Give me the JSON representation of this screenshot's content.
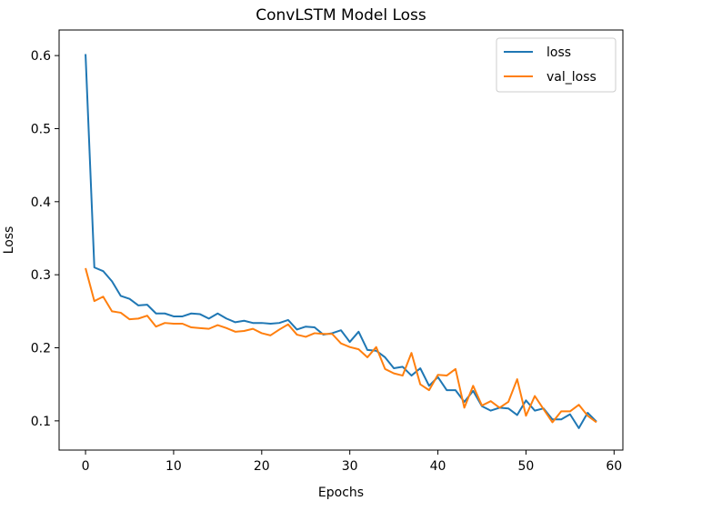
{
  "chart_data": {
    "type": "line",
    "title": "ConvLSTM Model Loss",
    "xlabel": "Epochs",
    "ylabel": "Loss",
    "xlim": [
      -3,
      61
    ],
    "ylim": [
      0.06,
      0.635
    ],
    "xticks": [
      0,
      10,
      20,
      30,
      40,
      50,
      60
    ],
    "xtick_labels": [
      "0",
      "10",
      "20",
      "30",
      "40",
      "50",
      "60"
    ],
    "yticks": [
      0.1,
      0.2,
      0.3,
      0.4,
      0.5,
      0.6
    ],
    "ytick_labels": [
      "0.1",
      "0.2",
      "0.3",
      "0.4",
      "0.5",
      "0.6"
    ],
    "grid": false,
    "legend_position": "top-right",
    "x": [
      0,
      1,
      2,
      3,
      4,
      5,
      6,
      7,
      8,
      9,
      10,
      11,
      12,
      13,
      14,
      15,
      16,
      17,
      18,
      19,
      20,
      21,
      22,
      23,
      24,
      25,
      26,
      27,
      28,
      29,
      30,
      31,
      32,
      33,
      34,
      35,
      36,
      37,
      38,
      39,
      40,
      41,
      42,
      43,
      44,
      45,
      46,
      47,
      48,
      49,
      50,
      51,
      52,
      53,
      54,
      55,
      56,
      57,
      58
    ],
    "series": [
      {
        "name": "loss",
        "color": "#1f77b4",
        "values": [
          0.602,
          0.31,
          0.305,
          0.291,
          0.271,
          0.267,
          0.258,
          0.259,
          0.247,
          0.247,
          0.243,
          0.243,
          0.247,
          0.246,
          0.24,
          0.247,
          0.24,
          0.235,
          0.237,
          0.234,
          0.234,
          0.233,
          0.234,
          0.238,
          0.225,
          0.229,
          0.228,
          0.218,
          0.22,
          0.224,
          0.208,
          0.222,
          0.197,
          0.196,
          0.187,
          0.172,
          0.174,
          0.162,
          0.172,
          0.148,
          0.16,
          0.142,
          0.142,
          0.126,
          0.141,
          0.12,
          0.114,
          0.118,
          0.117,
          0.108,
          0.128,
          0.114,
          0.117,
          0.102,
          0.102,
          0.109,
          0.09,
          0.111,
          0.099
        ]
      },
      {
        "name": "val_loss",
        "color": "#ff7f0e",
        "values": [
          0.309,
          0.264,
          0.27,
          0.25,
          0.248,
          0.239,
          0.24,
          0.244,
          0.229,
          0.234,
          0.233,
          0.233,
          0.228,
          0.227,
          0.226,
          0.231,
          0.227,
          0.222,
          0.223,
          0.226,
          0.22,
          0.217,
          0.225,
          0.232,
          0.218,
          0.215,
          0.22,
          0.219,
          0.219,
          0.206,
          0.201,
          0.198,
          0.187,
          0.201,
          0.171,
          0.165,
          0.162,
          0.193,
          0.15,
          0.142,
          0.163,
          0.162,
          0.171,
          0.118,
          0.148,
          0.121,
          0.127,
          0.118,
          0.126,
          0.157,
          0.107,
          0.134,
          0.116,
          0.098,
          0.113,
          0.113,
          0.122,
          0.107,
          0.098
        ]
      }
    ]
  }
}
